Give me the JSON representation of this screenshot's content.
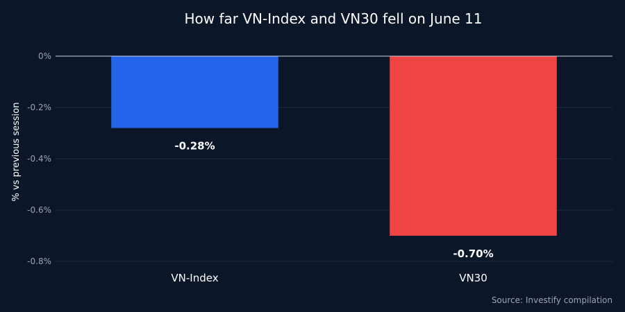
{
  "chart_data": {
    "type": "bar",
    "title": "How far VN-Index and VN30 fell on June 11",
    "xlabel": "",
    "ylabel": "% vs previous session",
    "categories": [
      "VN-Index",
      "VN30"
    ],
    "values": [
      -0.28,
      -0.7
    ],
    "value_labels": [
      "-0.28%",
      "-0.70%"
    ],
    "colors": [
      "#2563eb",
      "#ef4444"
    ],
    "ylim": [
      -0.8,
      0
    ],
    "yticks": [
      0,
      -0.2,
      -0.4,
      -0.6,
      -0.8
    ],
    "ytick_labels": [
      "0%",
      "-0.2%",
      "-0.4%",
      "-0.6%",
      "-0.8%"
    ],
    "grid": true,
    "legend": "none",
    "source": "Source: Investify compilation"
  }
}
